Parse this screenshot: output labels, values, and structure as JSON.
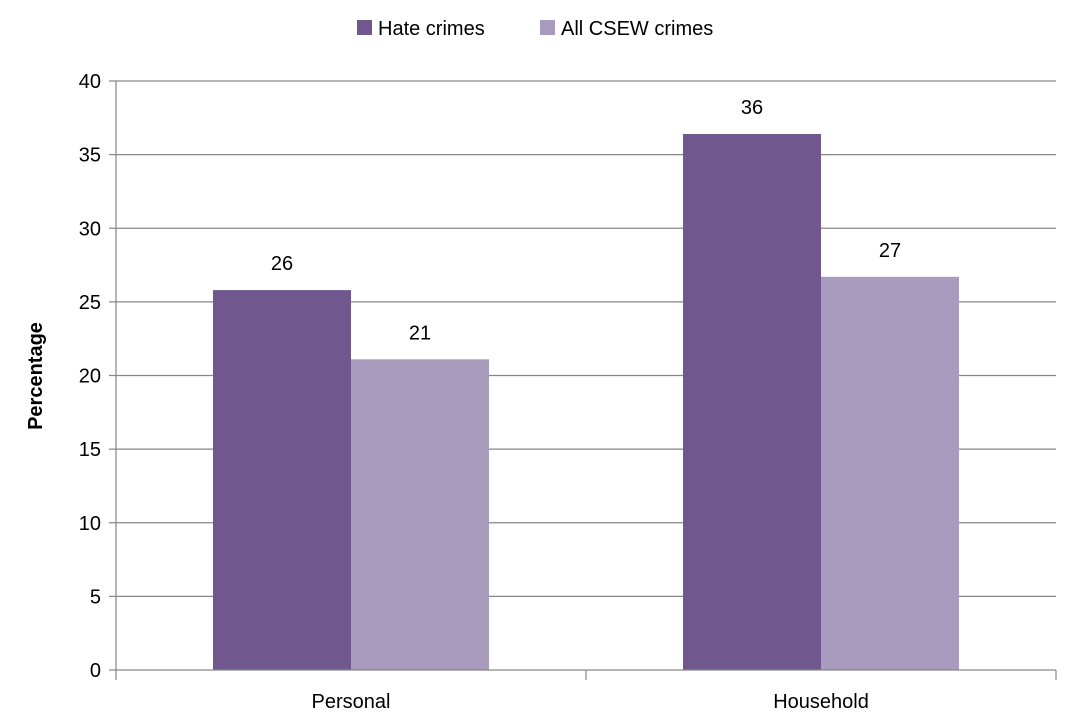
{
  "chart_data": {
    "type": "bar",
    "categories": [
      "Personal",
      "Household"
    ],
    "series": [
      {
        "name": "Hate crimes",
        "values": [
          25.8,
          36.4
        ],
        "labels": [
          "26",
          "36"
        ],
        "color": "#70588F"
      },
      {
        "name": "All CSEW crimes",
        "values": [
          21.1,
          26.7
        ],
        "labels": [
          "21",
          "27"
        ],
        "color": "#A99BBE"
      }
    ],
    "ylabel": "Percentage",
    "xlabel": "",
    "ylim": [
      0,
      40
    ],
    "yticks": [
      0,
      5,
      10,
      15,
      20,
      25,
      30,
      35,
      40
    ],
    "grid": true,
    "legend": "top"
  }
}
